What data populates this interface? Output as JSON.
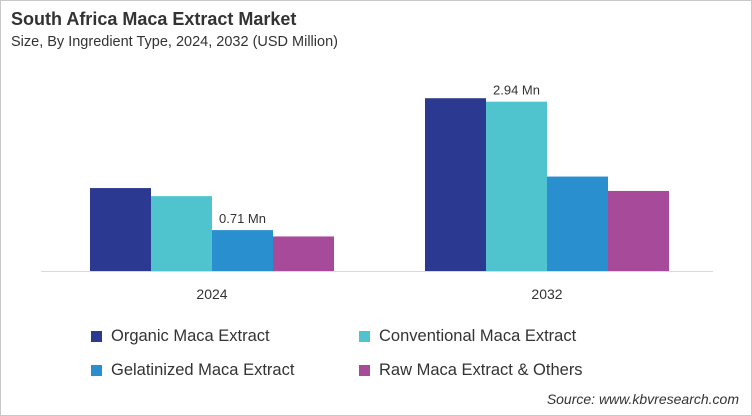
{
  "title": "South Africa Maca Extract Market",
  "subtitle": "Size, By Ingredient Type, 2024, 2032 (USD Million)",
  "source": "Source: www.kbvresearch.com",
  "chart_data": {
    "type": "bar",
    "title": "South Africa Maca Extract Market",
    "subtitle": "Size, By Ingredient Type, 2024, 2032 (USD Million)",
    "categories": [
      "2024",
      "2032"
    ],
    "series": [
      {
        "name": "Organic Maca Extract",
        "color": "#2b3990",
        "values": [
          1.44,
          3.0
        ]
      },
      {
        "name": "Conventional Maca Extract",
        "color": "#4fc4cf",
        "values": [
          1.3,
          2.94
        ]
      },
      {
        "name": "Gelatinized Maca Extract",
        "color": "#2a8fcf",
        "values": [
          0.71,
          1.64
        ]
      },
      {
        "name": "Raw Maca Extract & Others",
        "color": "#a84a9a",
        "values": [
          0.6,
          1.39
        ]
      }
    ],
    "data_labels": [
      {
        "series": 2,
        "category": 0,
        "text": "0.71 Mn"
      },
      {
        "series": 1,
        "category": 1,
        "text": "2.94 Mn"
      }
    ],
    "ylim": [
      0,
      3.16
    ],
    "grid": false,
    "legend": "bottom"
  }
}
